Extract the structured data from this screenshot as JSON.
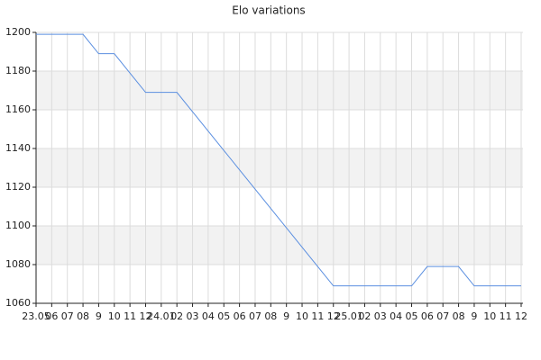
{
  "chart_data": {
    "type": "line",
    "title": "Elo variations",
    "categories": [
      "23.05",
      "06",
      "07",
      "08",
      "9",
      "10",
      "11",
      "12",
      "24.01",
      "02",
      "03",
      "04",
      "05",
      "06",
      "07",
      "08",
      "9",
      "10",
      "11",
      "12",
      "25.01",
      "02",
      "03",
      "04",
      "05",
      "06",
      "07",
      "08",
      "9",
      "10",
      "11",
      "12"
    ],
    "values": [
      1199,
      1199,
      1199,
      1199,
      1189,
      1189,
      1179,
      1169,
      1169,
      1169,
      1159,
      1149,
      1139,
      1129,
      1119,
      1109,
      1099,
      1089,
      1079,
      1069,
      1069,
      1069,
      1069,
      1069,
      1069,
      1079,
      1079,
      1079,
      1069,
      1069,
      1069,
      1069
    ],
    "color": "#5b8fe0",
    "ylim": [
      1060,
      1200
    ],
    "yticks": [
      1060,
      1080,
      1100,
      1120,
      1140,
      1160,
      1180,
      1200
    ],
    "grid": true
  }
}
